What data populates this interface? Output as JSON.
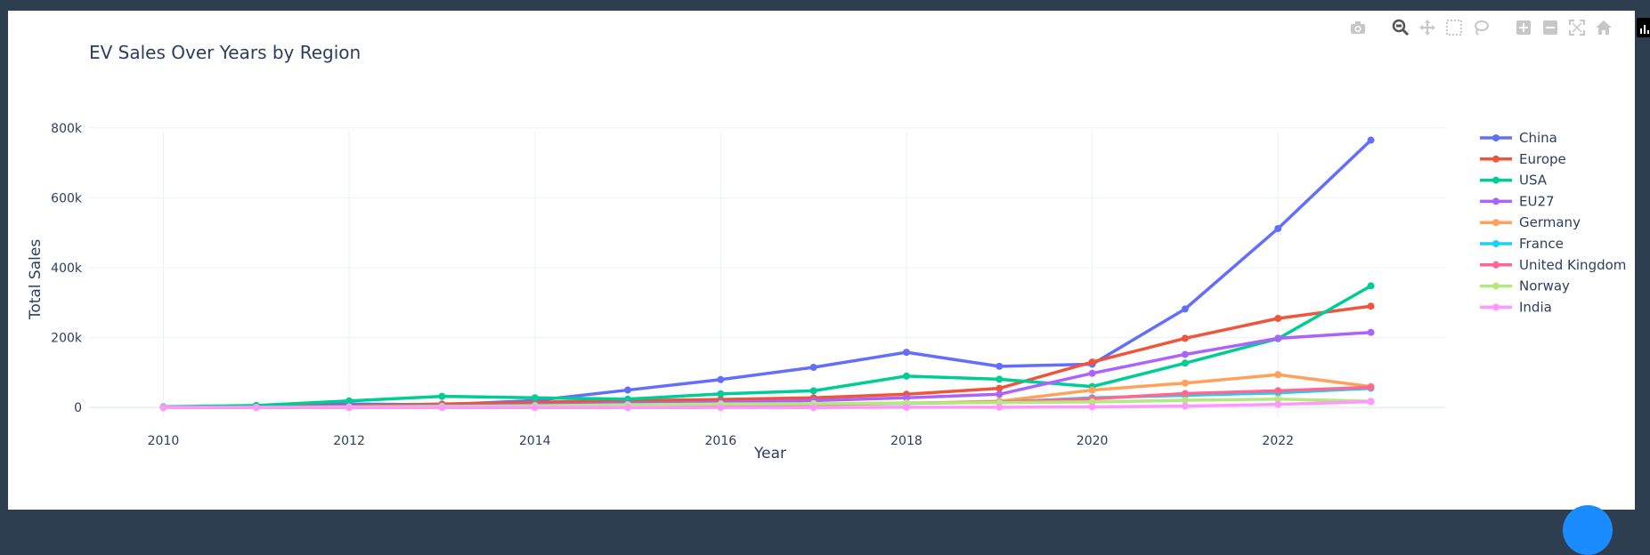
{
  "toolbar": {
    "items": [
      {
        "name": "camera-icon",
        "label": "Download plot as a png"
      },
      {
        "name": "zoom-icon",
        "label": "Zoom"
      },
      {
        "name": "pan-icon",
        "label": "Pan"
      },
      {
        "name": "box-select-icon",
        "label": "Box Select"
      },
      {
        "name": "lasso-select-icon",
        "label": "Lasso Select"
      },
      {
        "name": "zoom-in-icon",
        "label": "Zoom in"
      },
      {
        "name": "zoom-out-icon",
        "label": "Zoom out"
      },
      {
        "name": "autoscale-icon",
        "label": "Autoscale"
      },
      {
        "name": "reset-axes-icon",
        "label": "Reset axes"
      },
      {
        "name": "plotly-logo-icon",
        "label": "Produced with Plotly"
      }
    ]
  },
  "chart_data": {
    "type": "line",
    "title": "EV Sales Over Years by Region",
    "xlabel": "Year",
    "ylabel": "Total Sales",
    "x": [
      2010,
      2011,
      2012,
      2013,
      2014,
      2015,
      2016,
      2017,
      2018,
      2019,
      2020,
      2021,
      2022,
      2023
    ],
    "xticks": [
      2010,
      2012,
      2014,
      2016,
      2018,
      2020,
      2022
    ],
    "xlim": [
      2009.2,
      2023.8
    ],
    "ylim": [
      -30000,
      830000
    ],
    "yticks": [
      0,
      200000,
      400000,
      600000,
      800000
    ],
    "ytick_labels": [
      "0",
      "200k",
      "400k",
      "600k",
      "800k"
    ],
    "grid": true,
    "legend_position": "right",
    "series": [
      {
        "name": "China",
        "color": "#636efa",
        "values": [
          1000,
          5000,
          10000,
          8000,
          20000,
          50000,
          80000,
          115000,
          158000,
          118000,
          124000,
          282000,
          512000,
          765000
        ]
      },
      {
        "name": "Europe",
        "color": "#ef553b",
        "values": [
          500,
          2000,
          5000,
          10000,
          15000,
          20000,
          23000,
          28000,
          38000,
          55000,
          130000,
          198000,
          255000,
          290000
        ]
      },
      {
        "name": "USA",
        "color": "#00cc96",
        "values": [
          2000,
          6000,
          19000,
          32000,
          28000,
          24000,
          39000,
          48000,
          90000,
          81000,
          60000,
          127000,
          197000,
          348000
        ]
      },
      {
        "name": "EU27",
        "color": "#ab63fa",
        "values": [
          300,
          1000,
          3000,
          5000,
          8000,
          12000,
          15000,
          20000,
          28000,
          38000,
          98000,
          152000,
          198000,
          215000
        ]
      },
      {
        "name": "Germany",
        "color": "#ffa15a",
        "values": [
          100,
          300,
          1000,
          2000,
          3000,
          6000,
          7000,
          8000,
          12000,
          18000,
          50000,
          70000,
          94000,
          60000
        ]
      },
      {
        "name": "France",
        "color": "#19d3f3",
        "values": [
          100,
          500,
          1500,
          3000,
          4000,
          8000,
          9000,
          10000,
          12000,
          15000,
          28000,
          35000,
          42000,
          55000
        ]
      },
      {
        "name": "United Kingdom",
        "color": "#ff6692",
        "values": [
          100,
          300,
          600,
          1000,
          3000,
          7000,
          9000,
          10000,
          13000,
          15000,
          25000,
          40000,
          48000,
          58000
        ]
      },
      {
        "name": "Norway",
        "color": "#b6e880",
        "values": [
          200,
          600,
          1500,
          3000,
          5000,
          8000,
          10000,
          11000,
          13000,
          14000,
          16000,
          21000,
          24000,
          18000
        ]
      },
      {
        "name": "India",
        "color": "#ff97ff",
        "values": [
          0,
          0,
          0,
          0,
          0,
          0,
          0,
          0,
          1000,
          1000,
          2000,
          4000,
          9000,
          17000
        ]
      }
    ]
  }
}
